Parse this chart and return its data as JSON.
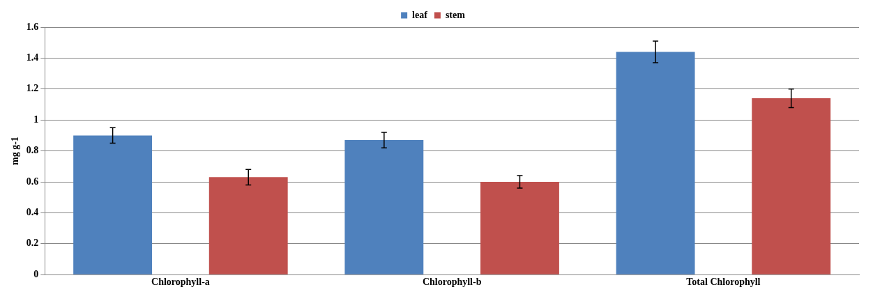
{
  "chart_data": {
    "type": "bar",
    "ylabel": "mg g-1",
    "categories": [
      "Chlorophyll-a",
      "Chlorophyll-b",
      "Total Chlorophyll"
    ],
    "series": [
      {
        "name": "leaf",
        "color": "#4f81bd",
        "values": [
          0.9,
          0.87,
          1.44
        ],
        "errors": [
          0.05,
          0.05,
          0.07
        ]
      },
      {
        "name": "stem",
        "color": "#c0504d",
        "values": [
          0.63,
          0.6,
          1.14
        ],
        "errors": [
          0.05,
          0.04,
          0.06
        ]
      }
    ],
    "ylim": [
      0,
      1.6
    ],
    "yticks": [
      0,
      0.2,
      0.4,
      0.6,
      0.8,
      1,
      1.2,
      1.4,
      1.6
    ],
    "grid": "y",
    "legend": "top"
  }
}
